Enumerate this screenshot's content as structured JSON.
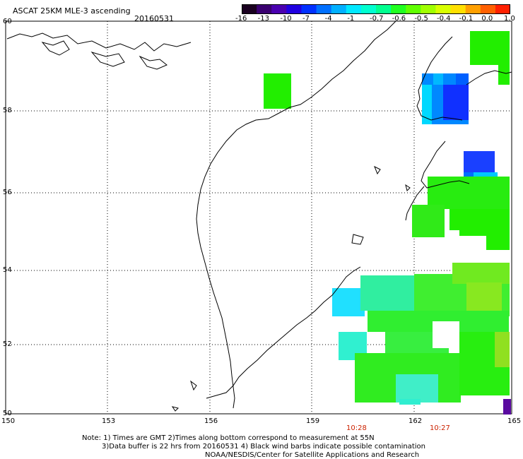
{
  "header": {
    "title": "ASCAT 25KM MLE-3 ascending",
    "date": "20160531"
  },
  "colorbar": {
    "ticks": [
      "-16",
      "-13",
      "-10",
      "-7",
      "-4",
      "-1",
      "-0.7",
      "-0.6",
      "-0.5",
      "-0.4",
      "-0.1",
      "0.0",
      "1.0"
    ],
    "colors": [
      "#1a0020",
      "#3a0070",
      "#4a00b0",
      "#2000e0",
      "#0030ff",
      "#0070ff",
      "#00b0ff",
      "#00e8ff",
      "#00ffd0",
      "#00ff90",
      "#20ff20",
      "#60ff00",
      "#a0ff00",
      "#d8ff00",
      "#ffe000",
      "#ffa000",
      "#ff6000",
      "#ff2000"
    ]
  },
  "axes": {
    "lat_labels": [
      "60",
      "58",
      "56",
      "54",
      "52",
      "50"
    ],
    "lon_labels": [
      "150",
      "153",
      "156",
      "159",
      "162",
      "165"
    ]
  },
  "time_labels": [
    "10:28",
    "10:27"
  ],
  "footer": {
    "line1": "Note: 1) Times are GMT 2)Times along bottom correspond to measurement at 55N",
    "line2": "3)Data buffer is 22 hrs from 20160531 4) Black wind barbs indicate possible contamination",
    "line3": "NOAA/NESDIS/Center for Satellite Applications and Research"
  }
}
